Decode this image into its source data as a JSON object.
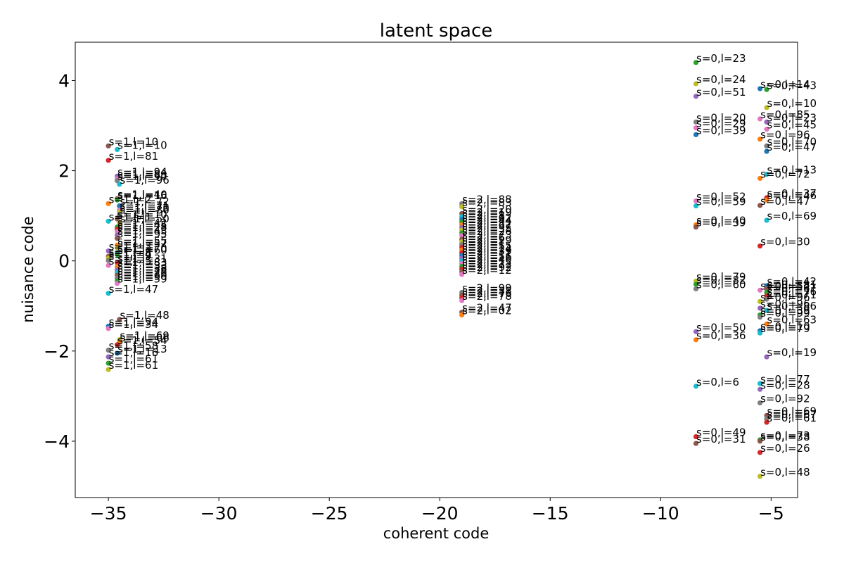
{
  "chart_data": {
    "type": "scatter",
    "title": "latent space",
    "xlabel": "coherent code",
    "ylabel": "nuisance code",
    "xlim": [
      -36.5,
      -3.8
    ],
    "ylim": [
      -5.25,
      4.85
    ],
    "xticks": [
      -35,
      -30,
      -25,
      -20,
      -15,
      -10,
      -5
    ],
    "yticks": [
      -4,
      -2,
      0,
      2,
      4
    ],
    "xtick_labels": [
      "−35",
      "−30",
      "−25",
      "−20",
      "−15",
      "−10",
      "−5"
    ],
    "ytick_labels": [
      "−4",
      "−2",
      "0",
      "2",
      "4"
    ],
    "grid": false,
    "legend": "none",
    "palette": [
      "#1f77b4",
      "#ff7f0e",
      "#2ca02c",
      "#d62728",
      "#9467bd",
      "#8c564b",
      "#e377c2",
      "#7f7f7f",
      "#bcbd22",
      "#17becf"
    ],
    "points": [
      {
        "x": -35.0,
        "y": 2.55,
        "label": "s=1,l=10",
        "color": "#8c564b"
      },
      {
        "x": -34.6,
        "y": 2.47,
        "label": "s=1,l=10",
        "color": "#17becf"
      },
      {
        "x": -35.0,
        "y": 2.23,
        "label": "s=1,l=81",
        "color": "#d62728"
      },
      {
        "x": -34.6,
        "y": 1.88,
        "label": "s=1,l=94",
        "color": "#9467bd"
      },
      {
        "x": -34.6,
        "y": 1.82,
        "label": "s=1,l=89",
        "color": "#e377c2"
      },
      {
        "x": -34.6,
        "y": 1.78,
        "label": "s=1,l=90",
        "color": "#7f7f7f"
      },
      {
        "x": -34.5,
        "y": 1.7,
        "label": "s=1,l=96",
        "color": "#17becf"
      },
      {
        "x": -34.6,
        "y": 1.38,
        "label": "s=1,l=40",
        "color": "#8c564b"
      },
      {
        "x": -34.6,
        "y": 1.35,
        "label": "s=1,l=16",
        "color": "#2ca02c"
      },
      {
        "x": -35.0,
        "y": 1.27,
        "label": "s=1,l=2",
        "color": "#ff7f0e"
      },
      {
        "x": -34.5,
        "y": 1.22,
        "label": "s=1,l=72",
        "color": "#1f77b4"
      },
      {
        "x": -34.5,
        "y": 1.13,
        "label": "s=1,l=71",
        "color": "#e377c2"
      },
      {
        "x": -34.5,
        "y": 1.08,
        "label": "s=1,l=70",
        "color": "#bcbd22"
      },
      {
        "x": -34.5,
        "y": 1.03,
        "label": "s=1,l=80",
        "color": "#7f7f7f"
      },
      {
        "x": -34.6,
        "y": 0.93,
        "label": "s=1,l=10",
        "color": "#8c564b"
      },
      {
        "x": -35.0,
        "y": 0.88,
        "label": "s=1,l=1",
        "color": "#17becf"
      },
      {
        "x": -34.5,
        "y": 0.84,
        "label": "s=1,l=50",
        "color": "#bcbd22"
      },
      {
        "x": -34.6,
        "y": 0.75,
        "label": "s=1,l=42",
        "color": "#2ca02c"
      },
      {
        "x": -34.6,
        "y": 0.7,
        "label": "s=1,l=45",
        "color": "#d62728"
      },
      {
        "x": -34.6,
        "y": 0.65,
        "label": "s=1,l=28",
        "color": "#e377c2"
      },
      {
        "x": -34.6,
        "y": 0.57,
        "label": "s=1,l=43",
        "color": "#9467bd"
      },
      {
        "x": -34.6,
        "y": 0.5,
        "label": "s=1,l=95",
        "color": "#8c564b"
      },
      {
        "x": -34.6,
        "y": 0.35,
        "label": "s=1,l=55",
        "color": "#ff7f0e"
      },
      {
        "x": -34.6,
        "y": 0.29,
        "label": "s=1,l=57",
        "color": "#bcbd22"
      },
      {
        "x": -35.0,
        "y": 0.22,
        "label": "s=1,l=3",
        "color": "#9467bd"
      },
      {
        "x": -34.6,
        "y": 0.18,
        "label": "s=1,l=70",
        "color": "#1f77b4"
      },
      {
        "x": -34.6,
        "y": 0.14,
        "label": "s=1,l=60",
        "color": "#2ca02c"
      },
      {
        "x": -35.0,
        "y": 0.1,
        "label": "s=1,l=8",
        "color": "#8c564b"
      },
      {
        "x": -35.0,
        "y": 0.06,
        "label": "s=1,l=4",
        "color": "#bcbd22"
      },
      {
        "x": -35.0,
        "y": 0.01,
        "label": "s=1,l=9",
        "color": "#7f7f7f"
      },
      {
        "x": -34.6,
        "y": -0.04,
        "label": "s=1,l=31",
        "color": "#d62728"
      },
      {
        "x": -35.0,
        "y": -0.1,
        "label": "s=1,l=5",
        "color": "#e377c2"
      },
      {
        "x": -34.6,
        "y": -0.13,
        "label": "s=1,l=83",
        "color": "#ff7f0e"
      },
      {
        "x": -34.6,
        "y": -0.2,
        "label": "s=1,l=33",
        "color": "#9467bd"
      },
      {
        "x": -34.6,
        "y": -0.26,
        "label": "s=1,l=38",
        "color": "#17becf"
      },
      {
        "x": -34.6,
        "y": -0.32,
        "label": "s=1,l=78",
        "color": "#8c564b"
      },
      {
        "x": -34.6,
        "y": -0.38,
        "label": "s=1,l=26",
        "color": "#7f7f7f"
      },
      {
        "x": -34.6,
        "y": -0.44,
        "label": "s=1,l=90",
        "color": "#2ca02c"
      },
      {
        "x": -34.6,
        "y": -0.5,
        "label": "s=1,l=59",
        "color": "#e377c2"
      },
      {
        "x": -35.0,
        "y": -0.72,
        "label": "s=1,l=47",
        "color": "#17becf"
      },
      {
        "x": -34.5,
        "y": -1.3,
        "label": "s=1,l=48",
        "color": "#8c564b"
      },
      {
        "x": -35.0,
        "y": -1.45,
        "label": "s=1,l=94",
        "color": "#1f77b4"
      },
      {
        "x": -35.0,
        "y": -1.5,
        "label": "s=1,l=34",
        "color": "#e377c2"
      },
      {
        "x": -34.5,
        "y": -1.75,
        "label": "s=1,l=69",
        "color": "#bcbd22"
      },
      {
        "x": -34.5,
        "y": -1.8,
        "label": "s=1,l=66",
        "color": "#ff7f0e"
      },
      {
        "x": -34.6,
        "y": -1.86,
        "label": "s=1,l=54",
        "color": "#d62728"
      },
      {
        "x": -35.0,
        "y": -1.98,
        "label": "s=1,l=58",
        "color": "#7f7f7f"
      },
      {
        "x": -34.6,
        "y": -2.05,
        "label": "s=1,l=13",
        "color": "#1f77b4"
      },
      {
        "x": -35.0,
        "y": -2.13,
        "label": "s=1,l=16",
        "color": "#9467bd"
      },
      {
        "x": -35.0,
        "y": -2.27,
        "label": "s=1,l=61",
        "color": "#2ca02c"
      },
      {
        "x": -35.0,
        "y": -2.41,
        "label": "s=1,l=61",
        "color": "#bcbd22"
      },
      {
        "x": -19.0,
        "y": 1.27,
        "label": "s=2,l=88",
        "color": "#7f7f7f"
      },
      {
        "x": -19.0,
        "y": 1.2,
        "label": "s=2,l=83",
        "color": "#bcbd22"
      },
      {
        "x": -19.0,
        "y": 1.05,
        "label": "s=2,l=20",
        "color": "#8c564b"
      },
      {
        "x": -19.0,
        "y": 0.98,
        "label": "s=2,l=19",
        "color": "#17becf"
      },
      {
        "x": -19.0,
        "y": 0.92,
        "label": "s=2,l=8",
        "color": "#1f77b4"
      },
      {
        "x": -19.0,
        "y": 0.86,
        "label": "s=2,l=62",
        "color": "#2ca02c"
      },
      {
        "x": -19.0,
        "y": 0.8,
        "label": "s=2,l=44",
        "color": "#ff7f0e"
      },
      {
        "x": -19.0,
        "y": 0.74,
        "label": "s=2,l=82",
        "color": "#9467bd"
      },
      {
        "x": -19.0,
        "y": 0.68,
        "label": "s=2,l=67",
        "color": "#bcbd22"
      },
      {
        "x": -19.0,
        "y": 0.62,
        "label": "s=2,l=35",
        "color": "#2ca02c"
      },
      {
        "x": -19.0,
        "y": 0.56,
        "label": "s=2,l=26",
        "color": "#e377c2"
      },
      {
        "x": -19.0,
        "y": 0.48,
        "label": "s=2,l=73",
        "color": "#8c564b"
      },
      {
        "x": -19.0,
        "y": 0.42,
        "label": "s=2,l=6",
        "color": "#bcbd22"
      },
      {
        "x": -19.0,
        "y": 0.36,
        "label": "s=2,l=29",
        "color": "#7f7f7f"
      },
      {
        "x": -19.0,
        "y": 0.3,
        "label": "s=2,l=1",
        "color": "#d62728"
      },
      {
        "x": -19.0,
        "y": 0.24,
        "label": "s=2,l=55",
        "color": "#ff7f0e"
      },
      {
        "x": -19.0,
        "y": 0.18,
        "label": "s=2,l=14",
        "color": "#d62728"
      },
      {
        "x": -19.0,
        "y": 0.12,
        "label": "s=2,l=39",
        "color": "#1f77b4"
      },
      {
        "x": -19.0,
        "y": 0.06,
        "label": "s=2,l=11",
        "color": "#9467bd"
      },
      {
        "x": -19.0,
        "y": 0.0,
        "label": "s=2,l=56",
        "color": "#17becf"
      },
      {
        "x": -19.0,
        "y": -0.06,
        "label": "s=2,l=40",
        "color": "#e377c2"
      },
      {
        "x": -19.0,
        "y": -0.12,
        "label": "s=2,l=15",
        "color": "#2ca02c"
      },
      {
        "x": -19.0,
        "y": -0.18,
        "label": "s=2,l=33",
        "color": "#d62728"
      },
      {
        "x": -19.0,
        "y": -0.24,
        "label": "s=2,l=92",
        "color": "#8c564b"
      },
      {
        "x": -19.0,
        "y": -0.3,
        "label": "s=2,l=12",
        "color": "#e377c2"
      },
      {
        "x": -19.0,
        "y": -0.7,
        "label": "s=2,l=99",
        "color": "#7f7f7f"
      },
      {
        "x": -19.0,
        "y": -0.76,
        "label": "s=2,l=38",
        "color": "#8c564b"
      },
      {
        "x": -19.0,
        "y": -0.82,
        "label": "s=2,l=76",
        "color": "#d62728"
      },
      {
        "x": -19.0,
        "y": -0.88,
        "label": "s=2,l=78",
        "color": "#e377c2"
      },
      {
        "x": -19.0,
        "y": -1.14,
        "label": "s=2,l=47",
        "color": "#8c564b"
      },
      {
        "x": -19.0,
        "y": -1.2,
        "label": "s=2,l=02",
        "color": "#ff7f0e"
      },
      {
        "x": -8.4,
        "y": 4.4,
        "label": "s=0,l=23",
        "color": "#2ca02c"
      },
      {
        "x": -8.4,
        "y": 3.93,
        "label": "s=0,l=24",
        "color": "#bcbd22"
      },
      {
        "x": -8.4,
        "y": 3.65,
        "label": "s=0,l=51",
        "color": "#9467bd"
      },
      {
        "x": -8.4,
        "y": 3.08,
        "label": "s=0,l=20",
        "color": "#7f7f7f"
      },
      {
        "x": -8.4,
        "y": 2.95,
        "label": "s=0,l=29",
        "color": "#e377c2"
      },
      {
        "x": -8.4,
        "y": 2.8,
        "label": "s=0,l=39",
        "color": "#1f77b4"
      },
      {
        "x": -8.4,
        "y": 1.33,
        "label": "s=0,l=52",
        "color": "#e377c2"
      },
      {
        "x": -8.4,
        "y": 1.22,
        "label": "s=0,l=59",
        "color": "#17becf"
      },
      {
        "x": -8.4,
        "y": 0.8,
        "label": "s=0,l=40",
        "color": "#ff7f0e"
      },
      {
        "x": -8.4,
        "y": 0.75,
        "label": "s=0,l=39",
        "color": "#8c564b"
      },
      {
        "x": -8.4,
        "y": -0.45,
        "label": "s=0,l=79",
        "color": "#bcbd22"
      },
      {
        "x": -8.4,
        "y": -0.52,
        "label": "s=0,l=82",
        "color": "#2ca02c"
      },
      {
        "x": -8.4,
        "y": -0.62,
        "label": "s=0,l=60",
        "color": "#7f7f7f"
      },
      {
        "x": -8.4,
        "y": -1.57,
        "label": "s=0,l=50",
        "color": "#9467bd"
      },
      {
        "x": -8.4,
        "y": -1.75,
        "label": "s=0,l=36",
        "color": "#ff7f0e"
      },
      {
        "x": -8.4,
        "y": -2.78,
        "label": "s=0,l=6",
        "color": "#17becf"
      },
      {
        "x": -8.4,
        "y": -3.9,
        "label": "s=0,l=49",
        "color": "#d62728"
      },
      {
        "x": -8.4,
        "y": -4.05,
        "label": "s=0,l=31",
        "color": "#8c564b"
      },
      {
        "x": -5.5,
        "y": 3.82,
        "label": "s=0,l=14",
        "color": "#1f77b4"
      },
      {
        "x": -5.2,
        "y": 3.8,
        "label": "s=0,l=43",
        "color": "#2ca02c"
      },
      {
        "x": -5.2,
        "y": 3.4,
        "label": "s=0,l=10",
        "color": "#bcbd22"
      },
      {
        "x": -5.5,
        "y": 3.15,
        "label": "s=0,l=85",
        "color": "#e377c2"
      },
      {
        "x": -5.2,
        "y": 3.08,
        "label": "s=0,l=23",
        "color": "#9467bd"
      },
      {
        "x": -5.2,
        "y": 2.92,
        "label": "s=0,l=45",
        "color": "#e377c2"
      },
      {
        "x": -5.5,
        "y": 2.7,
        "label": "s=0,l=96",
        "color": "#ff7f0e"
      },
      {
        "x": -5.2,
        "y": 2.55,
        "label": "s=0,l=70",
        "color": "#7f7f7f"
      },
      {
        "x": -5.2,
        "y": 2.43,
        "label": "s=0,l=47",
        "color": "#1f77b4"
      },
      {
        "x": -5.2,
        "y": 1.92,
        "label": "s=0,l=13",
        "color": "#17becf"
      },
      {
        "x": -5.5,
        "y": 1.83,
        "label": "s=0,l=72",
        "color": "#ff7f0e"
      },
      {
        "x": -5.2,
        "y": 1.4,
        "label": "s=0,l=37",
        "color": "#d62728"
      },
      {
        "x": -5.2,
        "y": 1.35,
        "label": "s=0,l=46",
        "color": "#ff7f0e"
      },
      {
        "x": -5.5,
        "y": 1.23,
        "label": "s=0,l=47",
        "color": "#8c564b"
      },
      {
        "x": -5.2,
        "y": 0.9,
        "label": "s=0,l=69",
        "color": "#17becf"
      },
      {
        "x": -5.5,
        "y": 0.33,
        "label": "s=0,l=30",
        "color": "#d62728"
      },
      {
        "x": -5.2,
        "y": -0.55,
        "label": "s=0,l=42",
        "color": "#1f77b4"
      },
      {
        "x": -5.5,
        "y": -0.65,
        "label": "s=0,l=52",
        "color": "#e377c2"
      },
      {
        "x": -5.2,
        "y": -0.62,
        "label": "s=0,l=81",
        "color": "#8c564b"
      },
      {
        "x": -5.2,
        "y": -0.7,
        "label": "s=0,l=67",
        "color": "#2ca02c"
      },
      {
        "x": -5.2,
        "y": -0.78,
        "label": "s=0,l=76",
        "color": "#d62728"
      },
      {
        "x": -5.2,
        "y": -0.85,
        "label": "s=0,l=71",
        "color": "#7f7f7f"
      },
      {
        "x": -5.5,
        "y": -0.9,
        "label": "s=0,l=96",
        "color": "#bcbd22"
      },
      {
        "x": -5.5,
        "y": -1.05,
        "label": "s=0,l=96",
        "color": "#9467bd"
      },
      {
        "x": -5.2,
        "y": -1.1,
        "label": "s=0,l=86",
        "color": "#17becf"
      },
      {
        "x": -5.5,
        "y": -1.2,
        "label": "s=0,l=39",
        "color": "#2ca02c"
      },
      {
        "x": -5.5,
        "y": -1.25,
        "label": "s=0,l=99",
        "color": "#7f7f7f"
      },
      {
        "x": -5.2,
        "y": -1.4,
        "label": "s=0,l=63",
        "color": "#ff7f0e"
      },
      {
        "x": -5.5,
        "y": -1.55,
        "label": "s=0,l=10",
        "color": "#1f77b4"
      },
      {
        "x": -5.5,
        "y": -1.6,
        "label": "s=0,l=79",
        "color": "#17becf"
      },
      {
        "x": -5.2,
        "y": -2.13,
        "label": "s=0,l=19",
        "color": "#9467bd"
      },
      {
        "x": -5.5,
        "y": -2.72,
        "label": "s=0,l=77",
        "color": "#17becf"
      },
      {
        "x": -5.5,
        "y": -2.85,
        "label": "s=0,l=28",
        "color": "#9467bd"
      },
      {
        "x": -5.5,
        "y": -3.15,
        "label": "s=0,l=92",
        "color": "#7f7f7f"
      },
      {
        "x": -5.2,
        "y": -3.43,
        "label": "s=0,l=69",
        "color": "#8c564b"
      },
      {
        "x": -5.2,
        "y": -3.5,
        "label": "s=0,l=67",
        "color": "#7f7f7f"
      },
      {
        "x": -5.2,
        "y": -3.58,
        "label": "s=0,l=61",
        "color": "#d62728"
      },
      {
        "x": -5.5,
        "y": -3.97,
        "label": "s=0,l=73",
        "color": "#2ca02c"
      },
      {
        "x": -5.5,
        "y": -4.0,
        "label": "s=0,l=38",
        "color": "#8c564b"
      },
      {
        "x": -5.5,
        "y": -4.25,
        "label": "s=0,l=26",
        "color": "#d62728"
      },
      {
        "x": -5.5,
        "y": -4.78,
        "label": "s=0,l=48",
        "color": "#bcbd22"
      }
    ]
  }
}
